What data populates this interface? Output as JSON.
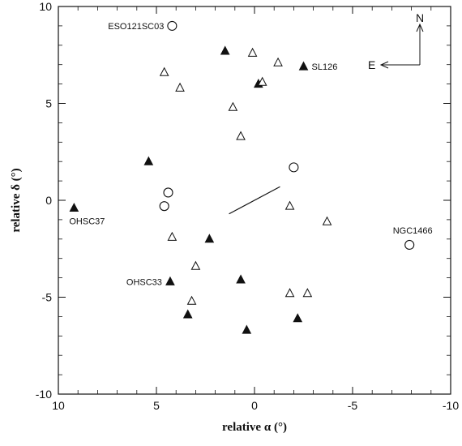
{
  "chart_data": {
    "type": "scatter",
    "title": "",
    "xlabel": "relative α (°)",
    "ylabel": "relative δ (°)",
    "xlim": [
      10,
      -10
    ],
    "ylim": [
      -10,
      10
    ],
    "x_inverted": true,
    "grid": false,
    "xticks": [
      10,
      5,
      0,
      -5,
      -10
    ],
    "yticks": [
      10,
      5,
      0,
      -5,
      -10
    ],
    "xtick_labels": [
      "10",
      "5",
      "0",
      "-5",
      "-10"
    ],
    "ytick_labels": [
      "10",
      "5",
      "0",
      "-5",
      "-10"
    ],
    "series": [
      {
        "marker": "filled-triangle",
        "color": "#111111",
        "points": [
          {
            "x": 9.2,
            "y": -0.4
          },
          {
            "x": 5.4,
            "y": 2.0
          },
          {
            "x": 4.3,
            "y": -4.2
          },
          {
            "x": 3.4,
            "y": -5.9
          },
          {
            "x": 2.3,
            "y": -2.0
          },
          {
            "x": 1.5,
            "y": 7.7
          },
          {
            "x": 0.7,
            "y": -4.1
          },
          {
            "x": 0.4,
            "y": -6.7
          },
          {
            "x": -0.2,
            "y": 6.0
          },
          {
            "x": -2.2,
            "y": -6.1
          },
          {
            "x": -2.5,
            "y": 6.9
          }
        ]
      },
      {
        "marker": "open-triangle",
        "color": "#111111",
        "points": [
          {
            "x": 4.6,
            "y": 6.6
          },
          {
            "x": 3.8,
            "y": 5.8
          },
          {
            "x": 4.2,
            "y": -1.9
          },
          {
            "x": 3.0,
            "y": -3.4
          },
          {
            "x": 3.2,
            "y": -5.2
          },
          {
            "x": 1.1,
            "y": 4.8
          },
          {
            "x": 0.7,
            "y": 3.3
          },
          {
            "x": 0.1,
            "y": 7.6
          },
          {
            "x": -0.4,
            "y": 6.1
          },
          {
            "x": -1.2,
            "y": 7.1
          },
          {
            "x": -1.8,
            "y": -0.3
          },
          {
            "x": -1.8,
            "y": -4.8
          },
          {
            "x": -2.7,
            "y": -4.8
          },
          {
            "x": -3.7,
            "y": -1.1
          }
        ]
      },
      {
        "marker": "open-circle",
        "color": "#111111",
        "points": [
          {
            "x": 4.2,
            "y": 9.0
          },
          {
            "x": 4.4,
            "y": 0.4
          },
          {
            "x": 4.6,
            "y": -0.3
          },
          {
            "x": -2.0,
            "y": 1.7
          },
          {
            "x": -7.9,
            "y": -2.3
          }
        ]
      }
    ],
    "line_segment": {
      "x": [
        1.3,
        -1.3
      ],
      "y": [
        -0.7,
        0.7
      ]
    },
    "annotations": [
      {
        "text": "ESO121SC03",
        "x": 4.2,
        "y": 9.0,
        "side": "left"
      },
      {
        "text": "SL126",
        "x": -2.5,
        "y": 6.9,
        "side": "right"
      },
      {
        "text": "OHSC37",
        "x": 9.2,
        "y": -0.4,
        "side": "below"
      },
      {
        "text": "NGC1466",
        "x": -7.9,
        "y": -2.3,
        "side": "above"
      },
      {
        "text": "OHSC33",
        "x": 4.3,
        "y": -4.2,
        "side": "left"
      }
    ],
    "compass": {
      "north": "N",
      "east": "E"
    }
  }
}
